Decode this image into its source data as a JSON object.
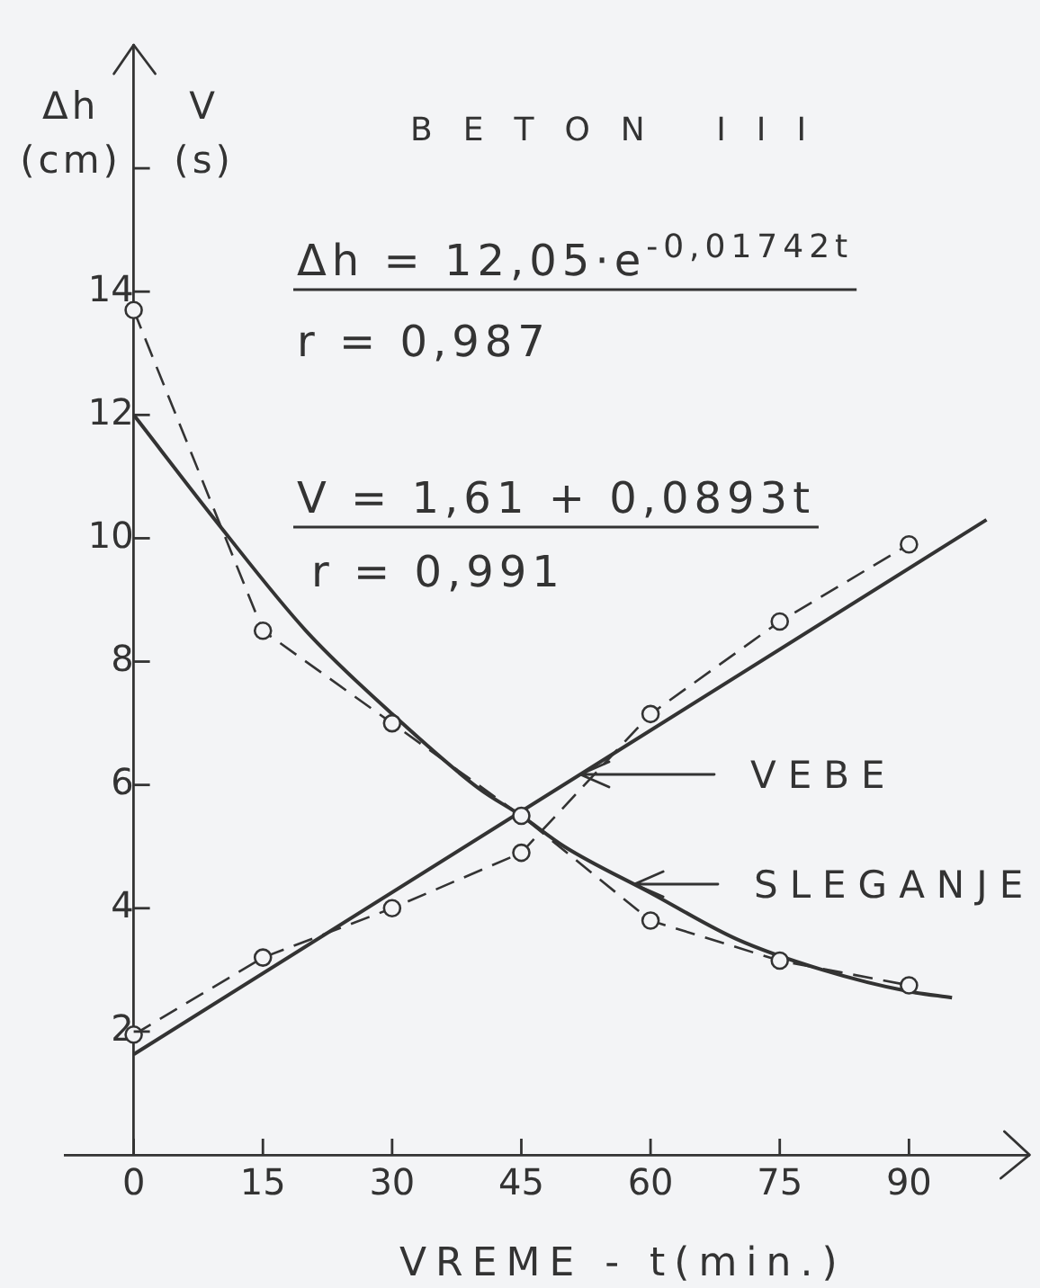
{
  "chart_data": {
    "type": "line",
    "title": "BETON III",
    "xlabel": "VREME - t(min.)",
    "ylabel": "Δh (cm)",
    "y2label": "V (s)",
    "annotations": [
      "Δh = 12,05·e$^{-0,01742t}$",
      "r = 0,987",
      "V = 1,61 + 0,0893t",
      "r = 0,991"
    ],
    "xlim": [
      -8,
      104
    ],
    "xticks": [
      0,
      15,
      30,
      45,
      60,
      75,
      90
    ],
    "ylim": [
      0,
      18
    ],
    "yticks": [
      2,
      4,
      6,
      8,
      10,
      12,
      14,
      {
        "value": 16,
        "label": null
      }
    ],
    "legend": "right",
    "series": [
      {
        "color": "#333333",
        "marker": "circle",
        "line_style": "dashed",
        "x": [
          0,
          15,
          30,
          45,
          60,
          75,
          90
        ],
        "values": [
          13.7,
          8.5,
          7.0,
          5.5,
          3.8,
          3.15,
          2.75
        ]
      },
      {
        "name": "SLEGANJE",
        "color": "#333333",
        "marker": "none",
        "line_style": "solid",
        "x": [
          0,
          10,
          20,
          30,
          40,
          45,
          50,
          60,
          70,
          80,
          90,
          95
        ],
        "values": [
          12.0,
          10.2,
          8.5,
          7.15,
          5.95,
          5.5,
          5.0,
          4.25,
          3.5,
          3.0,
          2.65,
          2.55
        ]
      },
      {
        "color": "#333333",
        "marker": "circle",
        "line_style": "dashed",
        "x": [
          0,
          15,
          30,
          45,
          60,
          75,
          90
        ],
        "values": [
          1.95,
          3.2,
          4.0,
          4.9,
          7.15,
          8.65,
          9.9
        ]
      },
      {
        "name": "VEBE",
        "color": "#333333",
        "marker": "none",
        "line_style": "solid",
        "x": [
          0,
          99
        ],
        "values": [
          1.63,
          10.3
        ]
      }
    ]
  }
}
